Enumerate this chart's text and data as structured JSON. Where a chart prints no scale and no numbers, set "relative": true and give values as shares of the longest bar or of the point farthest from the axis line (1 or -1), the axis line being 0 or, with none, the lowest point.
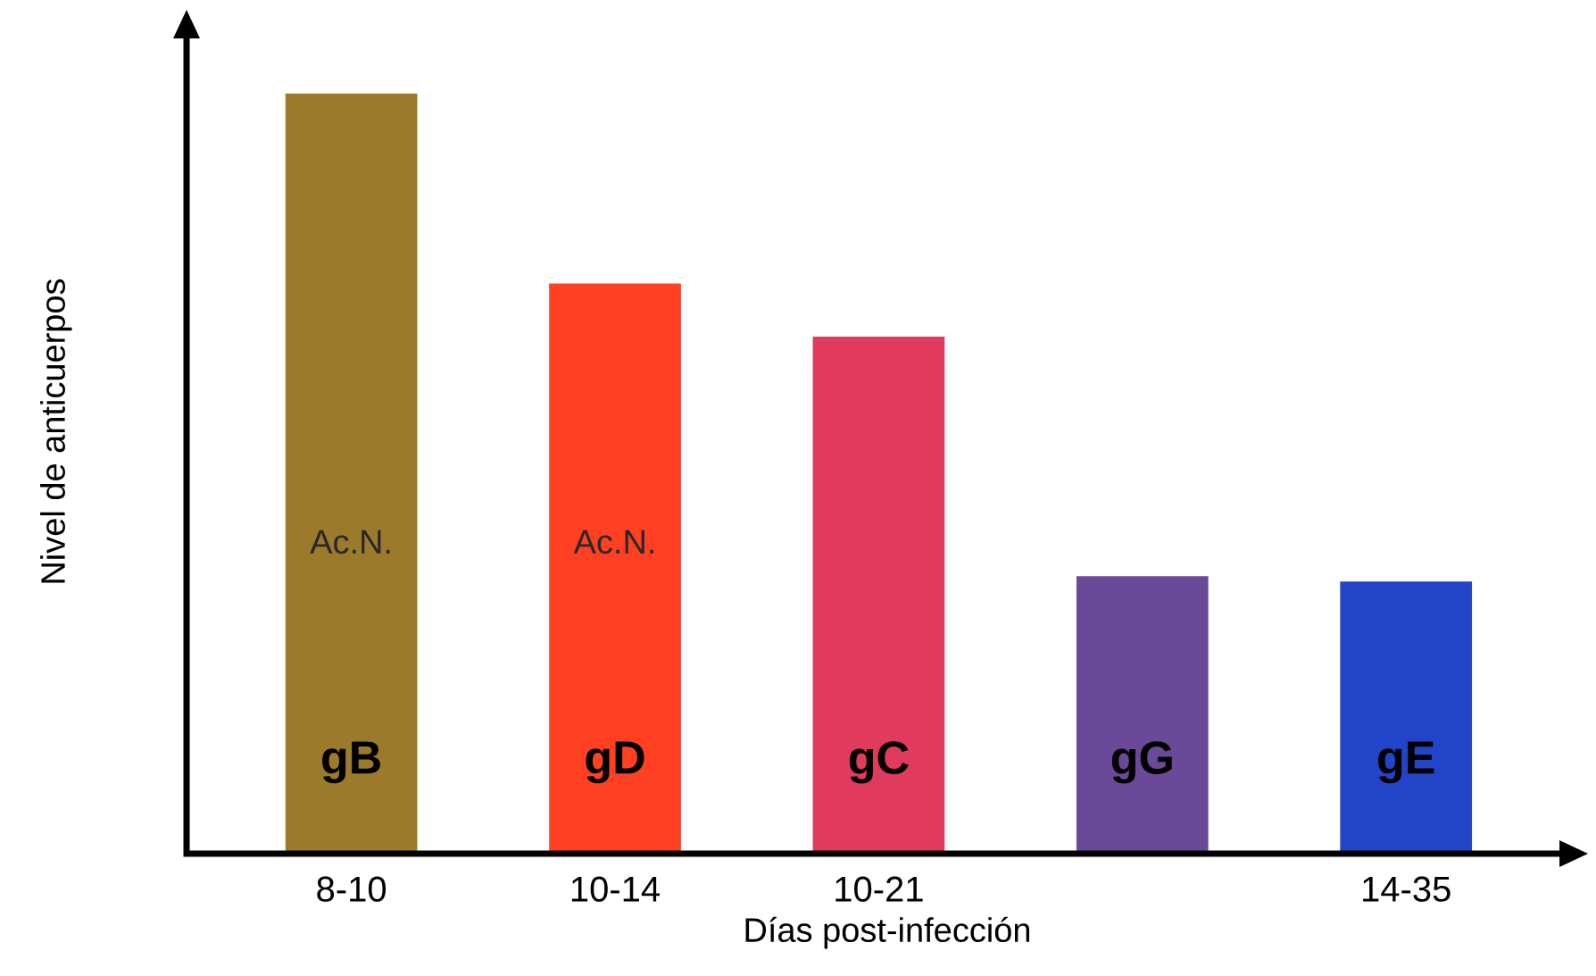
{
  "chart_data": {
    "type": "bar",
    "relative": true,
    "xlabel": "Días post-infección",
    "ylabel": "Nivel de anticuerpos",
    "categories": [
      "8-10",
      "10-14",
      "10-21",
      null,
      "14-35"
    ],
    "series": [
      {
        "name": "gB",
        "color": "#9c7a2c",
        "values": [
          1,
          null,
          null,
          null,
          null
        ]
      },
      {
        "name": "gD",
        "color": "#ff4022",
        "values": [
          null,
          0.75,
          null,
          null,
          null
        ]
      },
      {
        "name": "gC",
        "color": "#e03a5c",
        "values": [
          null,
          null,
          0.68,
          null,
          null
        ]
      },
      {
        "name": "gG",
        "color": "#6a4a98",
        "values": [
          null,
          null,
          null,
          0.365,
          null
        ]
      },
      {
        "name": "gE",
        "color": "#2244c8",
        "values": [
          null,
          null,
          null,
          null,
          0.358
        ]
      }
    ],
    "annotations": [
      "Ac.N.",
      "Ac.N."
    ]
  }
}
